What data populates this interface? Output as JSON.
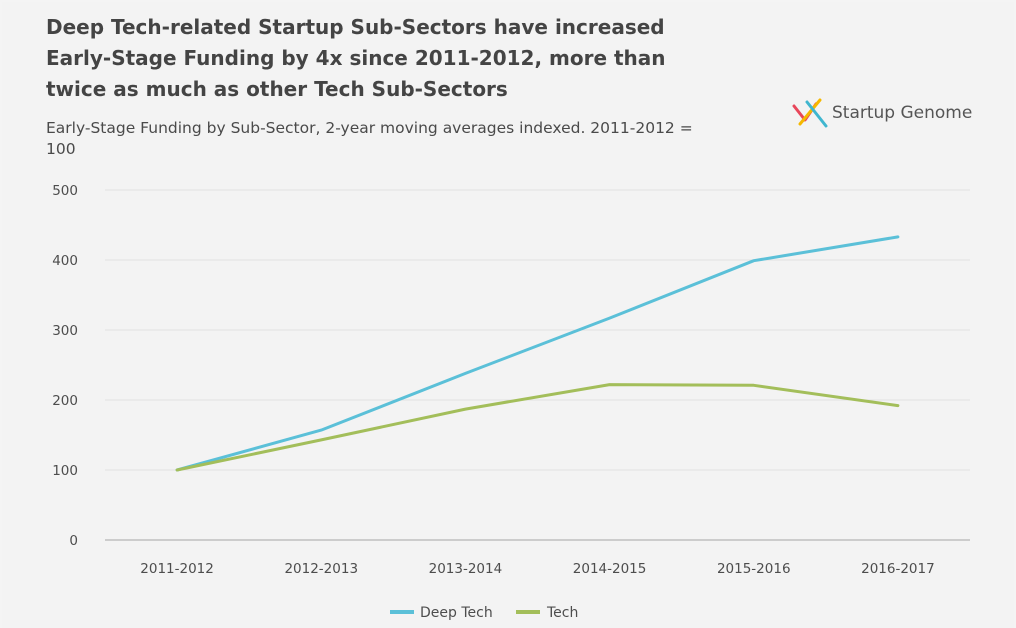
{
  "header": {
    "title": "Deep Tech-related Startup Sub-Sectors have increased Early-Stage Funding by 4x since 2011-2012, more than twice as much as other Tech Sub-Sectors",
    "subtitle": "Early-Stage Funding by Sub-Sector, 2-year moving averages indexed. 2011-2012 = 100"
  },
  "logo": {
    "text": "Startup Genome",
    "icon": "startup-genome-x-icon",
    "colors": [
      "#e8465a",
      "#f5b800",
      "#3fb6cf"
    ]
  },
  "chart_data": {
    "type": "line",
    "title": "Deep Tech-related Startup Sub-Sectors have increased Early-Stage Funding by 4x since 2011-2012, more than twice as much as other Tech Sub-Sectors",
    "subtitle": "Early-Stage Funding by Sub-Sector, 2-year moving averages indexed. 2011-2012 = 100",
    "categories": [
      "2011-2012",
      "2012-2013",
      "2013-2014",
      "2014-2015",
      "2015-2016",
      "2016-2017"
    ],
    "series": [
      {
        "name": "Deep Tech",
        "color": "#5bc0d8",
        "values": [
          100,
          157,
          238,
          317,
          399,
          433
        ]
      },
      {
        "name": "Tech",
        "color": "#a3be5a",
        "values": [
          100,
          143,
          187,
          222,
          221,
          192
        ]
      }
    ],
    "yticks": [
      0,
      100,
      200,
      300,
      400,
      500
    ],
    "ylim": [
      0,
      500
    ],
    "grid": true,
    "legend": "bottom-center",
    "xlabel": "",
    "ylabel": ""
  }
}
